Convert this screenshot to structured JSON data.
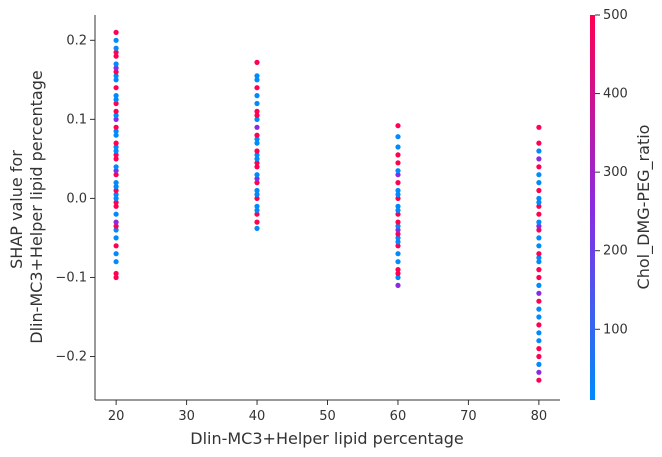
{
  "chart_data": {
    "type": "scatter",
    "xlabel": "Dlin-MC3+Helper lipid percentage",
    "ylabel_lines": [
      "SHAP value for",
      "Dlin-MC3+Helper lipid percentage"
    ],
    "colorbar_label": "Chol_DMG-PEG_ratio",
    "xlim": [
      17,
      83
    ],
    "ylim": [
      -0.255,
      0.232
    ],
    "x_ticks": [
      20,
      30,
      40,
      50,
      60,
      70,
      80
    ],
    "y_ticks": [
      -0.2,
      -0.1,
      0.0,
      0.1,
      0.2
    ],
    "y_tick_labels": [
      "−0.2",
      "−0.1",
      "0.0",
      "0.1",
      "0.2"
    ],
    "colorbar_range": [
      10,
      500
    ],
    "colorbar_ticks": [
      100,
      200,
      300,
      400,
      500
    ],
    "colors": {
      "low": "#008afb",
      "mid": "#8a2be2",
      "high": "#ff0052"
    },
    "grid": false,
    "groups": [
      {
        "x": 20,
        "values": [
          -0.1,
          -0.095,
          -0.08,
          -0.07,
          -0.06,
          -0.05,
          -0.04,
          -0.035,
          -0.03,
          -0.02,
          -0.01,
          -0.005,
          0.0,
          0.005,
          0.01,
          0.015,
          0.02,
          0.03,
          0.035,
          0.04,
          0.05,
          0.055,
          0.06,
          0.065,
          0.07,
          0.08,
          0.085,
          0.09,
          0.1,
          0.105,
          0.11,
          0.12,
          0.125,
          0.13,
          0.14,
          0.15,
          0.155,
          0.16,
          0.165,
          0.17,
          0.18,
          0.185,
          0.19,
          0.2,
          0.21
        ]
      },
      {
        "x": 40,
        "values": [
          -0.038,
          -0.03,
          -0.02,
          -0.015,
          -0.01,
          0.0,
          0.005,
          0.01,
          0.02,
          0.025,
          0.03,
          0.04,
          0.045,
          0.05,
          0.055,
          0.06,
          0.07,
          0.075,
          0.08,
          0.09,
          0.1,
          0.105,
          0.11,
          0.12,
          0.13,
          0.14,
          0.15,
          0.155,
          0.172
        ]
      },
      {
        "x": 60,
        "values": [
          -0.11,
          -0.1,
          -0.095,
          -0.09,
          -0.08,
          -0.07,
          -0.06,
          -0.055,
          -0.05,
          -0.045,
          -0.04,
          -0.035,
          -0.03,
          -0.02,
          -0.015,
          -0.01,
          0.0,
          0.005,
          0.01,
          0.02,
          0.03,
          0.035,
          0.045,
          0.055,
          0.065,
          0.078,
          0.092
        ]
      },
      {
        "x": 80,
        "values": [
          -0.23,
          -0.22,
          -0.21,
          -0.2,
          -0.19,
          -0.18,
          -0.17,
          -0.16,
          -0.15,
          -0.14,
          -0.13,
          -0.12,
          -0.11,
          -0.1,
          -0.09,
          -0.08,
          -0.075,
          -0.07,
          -0.06,
          -0.05,
          -0.04,
          -0.035,
          -0.03,
          -0.02,
          -0.01,
          -0.005,
          0.0,
          0.01,
          0.02,
          0.03,
          0.04,
          0.05,
          0.06,
          0.07,
          0.09
        ]
      }
    ]
  }
}
